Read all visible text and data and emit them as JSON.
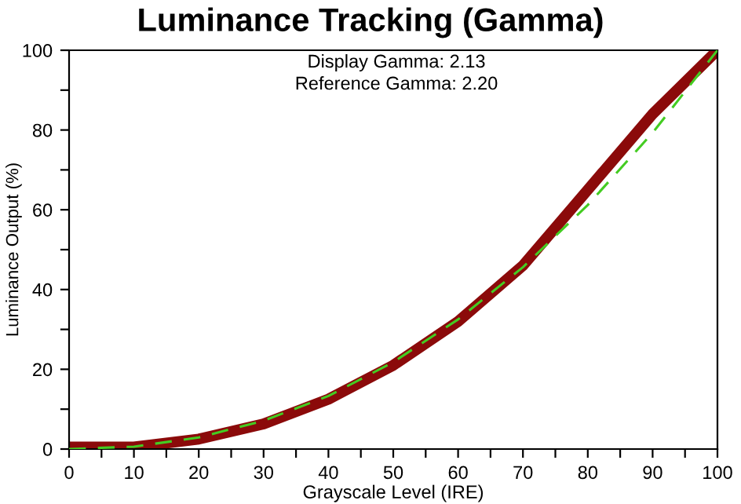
{
  "chart_data": {
    "type": "line",
    "title": "Luminance Tracking (Gamma)",
    "xlabel": "Grayscale Level (IRE)",
    "ylabel": "Luminance Output (%)",
    "annotations": [
      "Display Gamma: 2.13",
      "Reference Gamma: 2.20"
    ],
    "x": [
      0,
      10,
      20,
      30,
      40,
      50,
      60,
      70,
      80,
      90,
      100
    ],
    "series": [
      {
        "color": "#8b0a0a",
        "values": [
          0.5,
          0.5,
          2.5,
          6.3,
          12.5,
          21,
          32,
          46,
          65,
          84,
          100
        ],
        "line_style": "solid"
      },
      {
        "color": "#44cc22",
        "values": [
          0,
          0.6,
          2.9,
          7.1,
          13.3,
          21.8,
          32.5,
          45.6,
          61.2,
          79.3,
          100
        ],
        "line_style": "dashed"
      }
    ],
    "xlim": [
      0,
      100
    ],
    "ylim": [
      0,
      100
    ],
    "xticks": [
      0,
      {
        "value": 5,
        "label": null
      },
      10,
      {
        "value": 15,
        "label": null
      },
      20,
      {
        "value": 25,
        "label": null
      },
      30,
      {
        "value": 35,
        "label": null
      },
      40,
      {
        "value": 45,
        "label": null
      },
      50,
      {
        "value": 55,
        "label": null
      },
      60,
      {
        "value": 65,
        "label": null
      },
      70,
      {
        "value": 75,
        "label": null
      },
      80,
      {
        "value": 85,
        "label": null
      },
      90,
      {
        "value": 95,
        "label": null
      },
      100
    ],
    "yticks": [
      0,
      {
        "value": 10,
        "label": null
      },
      20,
      {
        "value": 30,
        "label": null
      },
      40,
      {
        "value": 50,
        "label": null
      },
      60,
      {
        "value": 70,
        "label": null
      },
      80,
      {
        "value": 90,
        "label": null
      },
      100
    ],
    "grid": false,
    "legend": false,
    "marker": "none"
  }
}
